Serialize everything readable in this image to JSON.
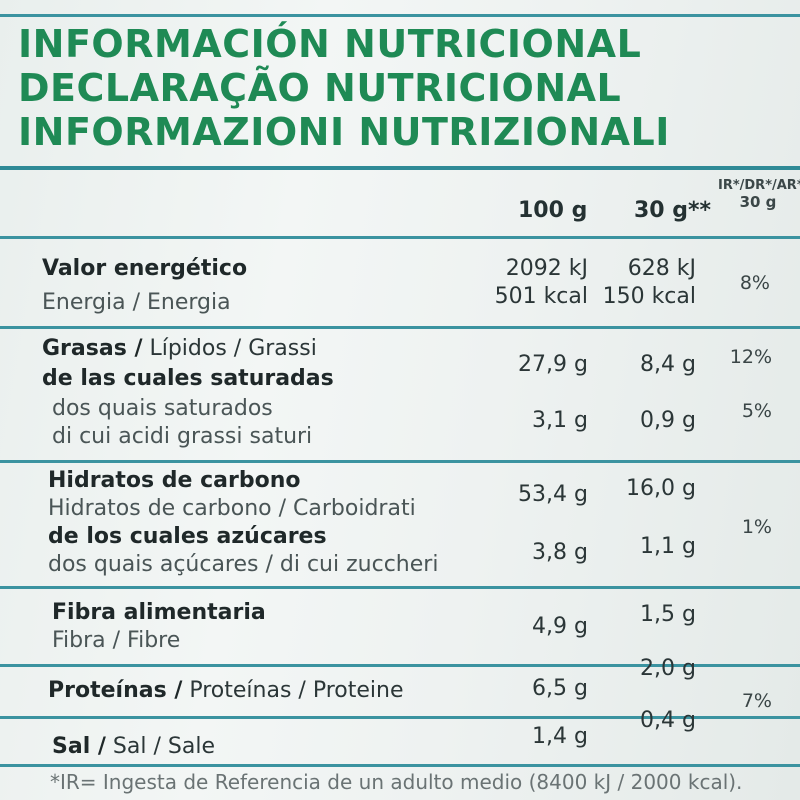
{
  "titles": [
    "INFORMACIÓN NUTRICIONAL",
    "DECLARAÇÃO NUTRICIONAL",
    "INFORMAZIONI NUTRIZIONALI"
  ],
  "headers": {
    "col100": "100 g",
    "col30": "30 g**",
    "ir_line1": "IR*/DR*/AR*",
    "ir_line2": "30 g"
  },
  "energy": {
    "label": "Valor energético",
    "sublabel": "Energia / Energia",
    "kj100": "2092 kJ",
    "kcal100": "501 kcal",
    "kj30": "628 kJ",
    "kcal30": "150 kcal",
    "ir": "8%"
  },
  "fat": {
    "label_bold": "Grasas /",
    "label_rest": " Lípidos / Grassi",
    "v100": "27,9 g",
    "v30": "8,4 g",
    "ir": "12%",
    "sat_label": "de las cuales saturadas",
    "sat_pt": "dos quais saturados",
    "sat_it": "di cui acidi grassi saturi",
    "sat100": "3,1 g",
    "sat30": "0,9 g",
    "sat_ir": "5%"
  },
  "carbs": {
    "label": "Hidratos de carbono",
    "sublabel": "Hidratos de carbono / Carboidrati",
    "v100": "53,4 g",
    "v30": "16,0 g",
    "sug_label": "de los cuales azúcares",
    "sug_sub": "dos quais açúcares / di cui zuccheri",
    "sug100": "3,8 g",
    "sug30": "1,1 g",
    "sug_ir": "1%"
  },
  "fiber": {
    "label": "Fibra alimentaria",
    "sublabel": "Fibra / Fibre",
    "v100": "4,9 g",
    "v30": "1,5 g"
  },
  "protein": {
    "label_bold": "Proteínas /",
    "label_rest": " Proteínas / Proteine",
    "v100": "6,5 g",
    "v30": "2,0 g"
  },
  "salt": {
    "label_bold": "Sal /",
    "label_rest": " Sal / Sale",
    "v100": "1,4 g",
    "v30": "0,4 g",
    "ir": "7%"
  },
  "footnote": "*IR= Ingesta de Referencia de un adulto medio (8400 kJ / 2000 kcal)."
}
